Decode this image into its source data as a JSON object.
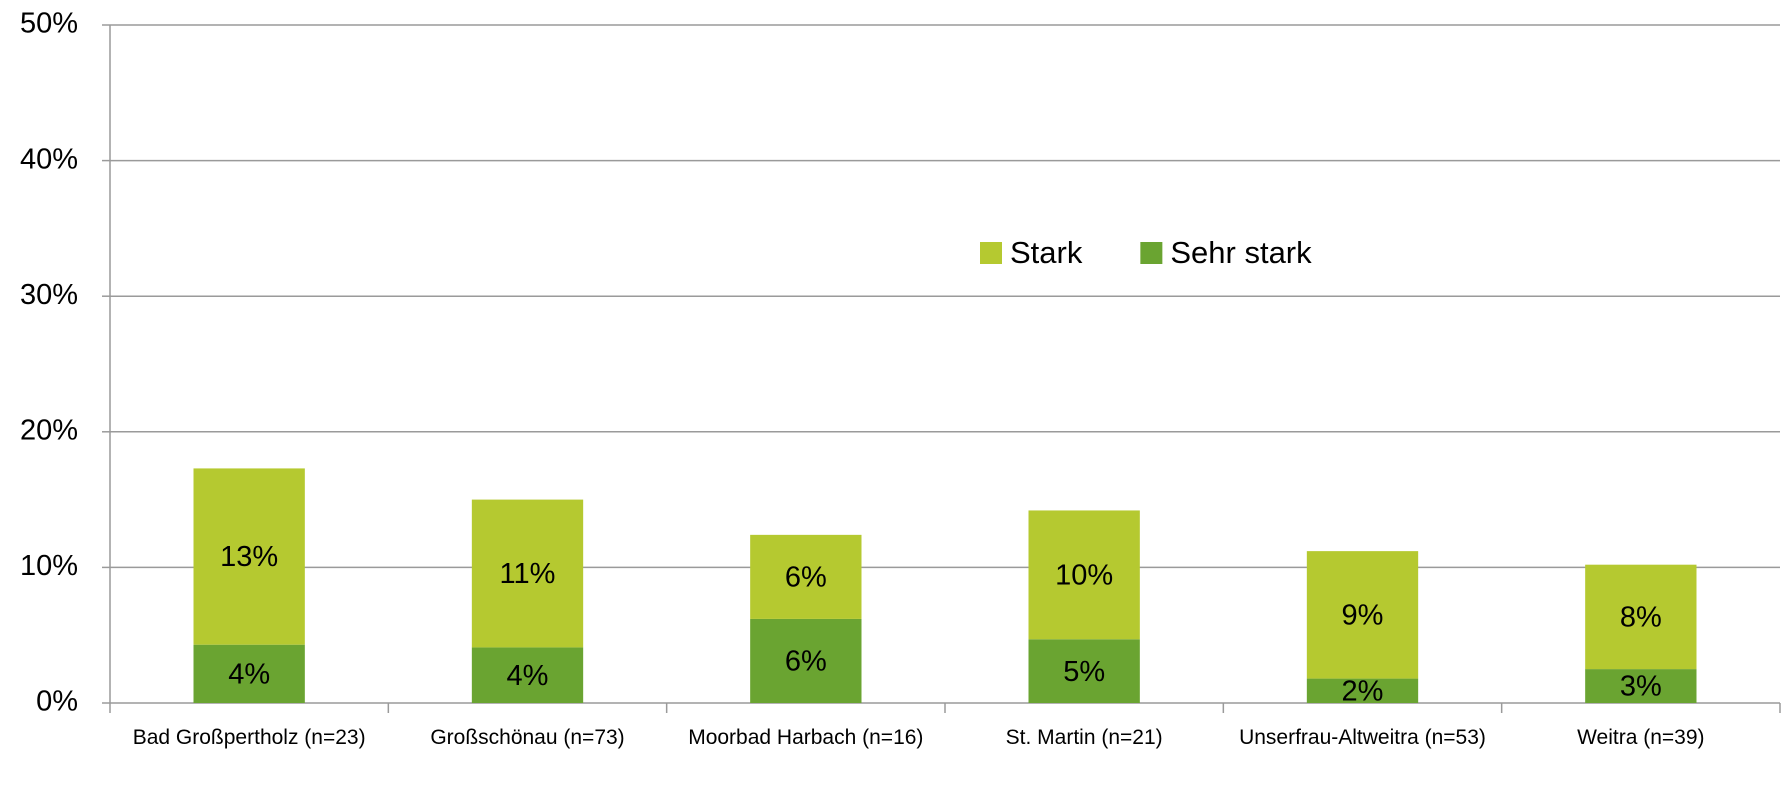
{
  "chart_data": {
    "type": "stacked_bar",
    "categories": [
      "Bad Großpertholz (n=23)",
      "Großschönau (n=73)",
      "Moorbad Harbach (n=16)",
      "St. Martin (n=21)",
      "Unserfrau-Altweitra (n=53)",
      "Weitra (n=39)"
    ],
    "series": [
      {
        "name": "Sehr stark",
        "color": "#6aa431",
        "values": [
          4.3,
          4.1,
          6.2,
          4.7,
          1.8,
          2.5
        ],
        "value_labels": [
          "4%",
          "4%",
          "6%",
          "5%",
          "2%",
          "3%"
        ]
      },
      {
        "name": "Stark",
        "color": "#b5c930",
        "values": [
          13.0,
          10.9,
          6.2,
          9.5,
          9.4,
          7.7
        ],
        "value_labels": [
          "13%",
          "11%",
          "6%",
          "10%",
          "9%",
          "8%"
        ]
      }
    ],
    "ylim": [
      0,
      50
    ],
    "yticks": [
      {
        "value": 0,
        "label": "0%"
      },
      {
        "value": 10,
        "label": "10%"
      },
      {
        "value": 20,
        "label": "20%"
      },
      {
        "value": 30,
        "label": "30%"
      },
      {
        "value": 40,
        "label": "40%"
      },
      {
        "value": 50,
        "label": "50%"
      }
    ],
    "grid": true,
    "legend": "center"
  }
}
